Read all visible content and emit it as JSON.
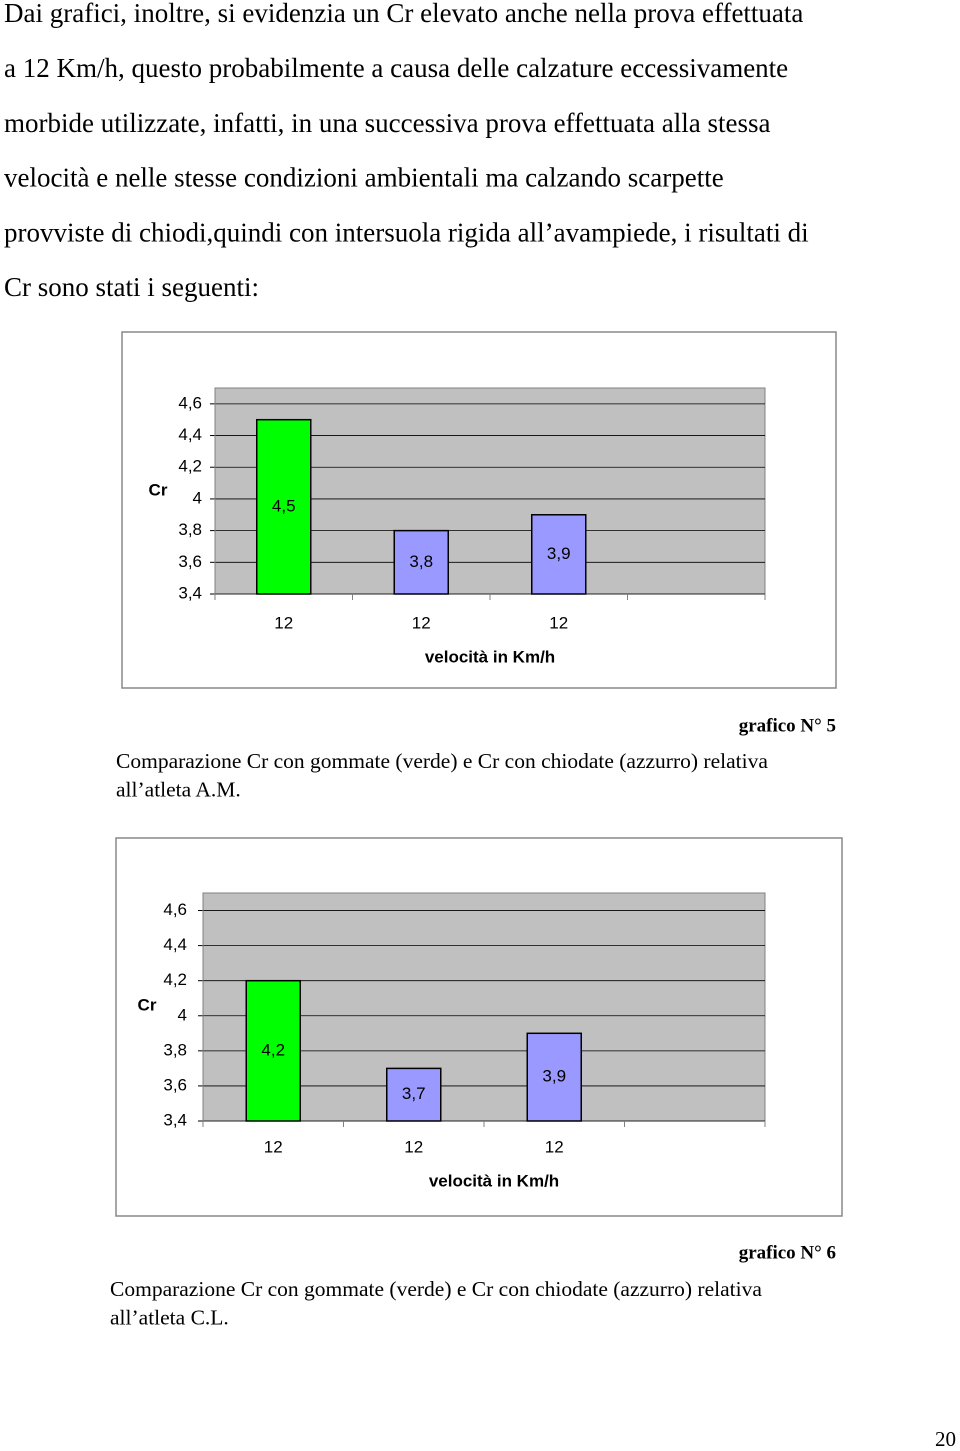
{
  "paragraph_lines": [
    "Dai grafici, inoltre, si evidenzia un Cr elevato anche nella prova effettuata",
    "a 12 Km/h, questo probabilmente a causa delle calzature eccessivamente",
    "morbide utilizzate, infatti, in una successiva prova effettuata alla stessa",
    "velocità e nelle stesse condizioni ambientali ma calzando scarpette",
    "provviste di chiodi,quindi con intersuola rigida all’avampiede, i risultati di",
    "Cr sono stati i seguenti:"
  ],
  "chart_data": [
    {
      "type": "bar",
      "y_label": "Cr",
      "x_label": "velocità in Km/h",
      "categories": [
        "12",
        "12",
        "12",
        null
      ],
      "values": [
        4.5,
        3.8,
        3.9,
        null
      ],
      "value_labels": [
        "4,5",
        "3,8",
        "3,9",
        null
      ],
      "colors": [
        "#00ff00",
        "#9999ff",
        "#9999ff",
        null
      ],
      "ylim": [
        3.4,
        4.7
      ],
      "yticks": [
        {
          "value": 3.4,
          "label": "3,4"
        },
        {
          "value": 3.6,
          "label": "3,6"
        },
        {
          "value": 3.8,
          "label": "3,8"
        },
        4,
        {
          "value": 4.2,
          "label": "4,2"
        },
        {
          "value": 4.4,
          "label": "4,4"
        },
        {
          "value": 4.6,
          "label": "4,6"
        }
      ],
      "grid": true
    },
    {
      "type": "bar",
      "y_label": "Cr",
      "x_label": "velocità in Km/h",
      "categories": [
        "12",
        "12",
        "12",
        null
      ],
      "values": [
        4.2,
        3.7,
        3.9,
        null
      ],
      "value_labels": [
        "4,2",
        "3,7",
        "3,9",
        null
      ],
      "colors": [
        "#00ff00",
        "#9999ff",
        "#9999ff",
        null
      ],
      "ylim": [
        3.4,
        4.7
      ],
      "yticks": [
        {
          "value": 3.4,
          "label": "3,4"
        },
        {
          "value": 3.6,
          "label": "3,6"
        },
        {
          "value": 3.8,
          "label": "3,8"
        },
        4,
        {
          "value": 4.2,
          "label": "4,2"
        },
        {
          "value": 4.4,
          "label": "4,4"
        },
        {
          "value": 4.6,
          "label": "4,6"
        }
      ],
      "grid": true
    }
  ],
  "figures": [
    {
      "label": "grafico N° 5",
      "caption_lines": [
        "Comparazione Cr con gommate (verde)  e Cr con chiodate (azzurro) relativa",
        "all’atleta  A.M."
      ]
    },
    {
      "label": "grafico N° 6",
      "caption_lines": [
        "Comparazione Cr con gommate (verde)  e Cr con chiodate (azzurro) relativa",
        "all’atleta  C.L."
      ]
    }
  ],
  "page_number": "20"
}
